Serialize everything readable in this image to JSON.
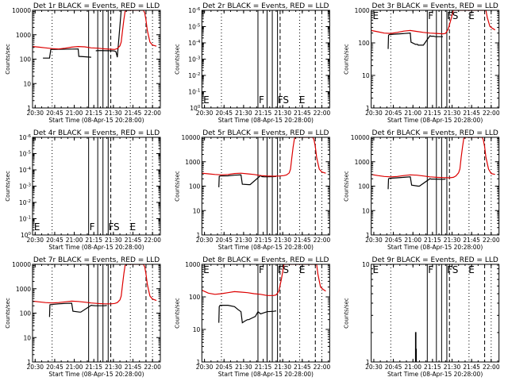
{
  "figure": {
    "title_template": "BLACK = Events, RED = LLD",
    "xlabel": "Start Time (08-Apr-15 20:28:00)",
    "ylabel": "Counts/sec",
    "colors": {
      "events": "#000000",
      "lld": "#dd0000"
    }
  },
  "chart_data": [
    {
      "type": "line",
      "title": "Det 1r BLACK = Events, RED = LLD",
      "xlabel": "Start Time (08-Apr-15 20:28:00)",
      "ylabel": "Counts/sec",
      "xticks": [
        "20:30",
        "20:45",
        "21:00",
        "21:15",
        "21:30",
        "21:45",
        "22:00"
      ],
      "xlim_min": [
        0,
        98
      ],
      "yscale": "log",
      "ylim": [
        1,
        10000
      ],
      "yticks": [
        "1",
        "10",
        "100",
        "1000",
        "10000"
      ],
      "markers": [],
      "series": [
        {
          "name": "Events",
          "color": "#000000",
          "x": [
            0,
            6,
            8,
            13,
            14,
            35,
            35.5,
            40,
            45,
            46,
            48,
            48.5,
            50,
            61,
            61.5,
            63,
            64,
            65,
            68,
            70,
            71,
            73,
            74,
            74.2
          ],
          "y": [
            null,
            null,
            110,
            110,
            250,
            260,
            130,
            125,
            120,
            null,
            null,
            220,
            225,
            220,
            220,
            215,
            200,
            120,
            10000,
            10000,
            10000,
            10000,
            10000,
            10000
          ]
        },
        {
          "name": "LLD",
          "color": "#dd0000",
          "x": [
            0,
            5,
            10,
            15,
            20,
            25,
            30,
            35,
            40,
            45,
            50,
            55,
            60,
            63,
            65,
            67,
            68,
            69,
            70,
            71,
            72,
            80,
            85,
            86,
            87,
            88,
            90,
            92,
            95
          ],
          "y": [
            330,
            310,
            290,
            270,
            260,
            280,
            310,
            330,
            320,
            290,
            280,
            265,
            255,
            250,
            270,
            350,
            500,
            1500,
            4000,
            9000,
            10000,
            10000,
            10000,
            8000,
            4000,
            1500,
            500,
            380,
            340
          ]
        }
      ]
    },
    {
      "type": "line",
      "title": "Det 2r BLACK = Events, RED = LLD",
      "xlabel": "Start Time (08-Apr-15 20:28:00)",
      "ylabel": "Counts/sec",
      "xticks": [
        "20:30",
        "20:45",
        "21:30",
        "21:15",
        "21:30",
        "21:45",
        "22:00"
      ],
      "yscale": "log",
      "ylim": [
        1,
        10
      ],
      "yticks": [
        "10^0",
        "10^-1",
        "10^-2",
        "10^-3",
        "10^-4",
        "10^-5",
        "10^-6"
      ],
      "markers": [
        "E",
        "F",
        "F",
        "S",
        "E"
      ],
      "series": []
    },
    {
      "type": "line",
      "title": "Det 3r BLACK = Events, RED = LLD",
      "xlabel": "Start Time (08-Apr-15 20:28:00)",
      "ylabel": "Counts/sec",
      "xticks": [
        "20:30",
        "20:45",
        "21:00",
        "21:15",
        "21:30",
        "21:45",
        "22:00"
      ],
      "yscale": "log",
      "ylim": [
        1,
        1000
      ],
      "yticks": [
        "1",
        "10",
        "100",
        "1000"
      ],
      "markers": [
        "E",
        "F",
        "F",
        "S",
        "E"
      ],
      "series": [
        {
          "name": "Events",
          "color": "#000000",
          "x": [
            13,
            13.3,
            13.5,
            14,
            30,
            30.5,
            34,
            35.5,
            36,
            40,
            45,
            46,
            48,
            49,
            55
          ],
          "y": [
            65,
            170,
            175,
            180,
            200,
            105,
            90,
            90,
            85,
            85,
            165,
            160,
            160,
            155,
            155
          ]
        },
        {
          "name": "LLD",
          "color": "#dd0000",
          "x": [
            0,
            5,
            10,
            15,
            20,
            25,
            30,
            35,
            40,
            45,
            50,
            55,
            57,
            59,
            61,
            63,
            88,
            89,
            91,
            93,
            95
          ],
          "y": [
            240,
            220,
            200,
            195,
            210,
            230,
            240,
            225,
            210,
            200,
            195,
            190,
            195,
            260,
            500,
            1000,
            1000,
            600,
            320,
            280,
            250
          ]
        }
      ]
    },
    {
      "type": "line",
      "title": "Det 4r BLACK = Events, RED = LLD",
      "xlabel": "Start Time (08-Apr-15 20:28:00)",
      "ylabel": "Counts/sec",
      "xticks": [
        "20:30",
        "20:45",
        "21:00",
        "21:15",
        "21:30",
        "21:45",
        "22:00"
      ],
      "yscale": "log",
      "ylim": [
        1,
        10
      ],
      "yticks": [
        "10^0",
        "10^-1",
        "10^-2",
        "10^-3",
        "10^-4",
        "10^-5",
        "10^-6"
      ],
      "markers": [
        "E",
        "F",
        "F",
        "S",
        "E"
      ],
      "series": []
    },
    {
      "type": "line",
      "title": "Det 5r BLACK = Events, RED = LLD",
      "xlabel": "Start Time (08-Apr-15 20:28:00)",
      "ylabel": "Counts/sec",
      "xticks": [
        "20:30",
        "20:45",
        "21:30",
        "21:15",
        "21:30",
        "21:45",
        "22:00"
      ],
      "yscale": "log",
      "ylim": [
        1,
        10000
      ],
      "yticks": [
        "1",
        "10",
        "100",
        "1000",
        "10000"
      ],
      "markers": [],
      "series": [
        {
          "name": "Events",
          "color": "#000000",
          "x": [
            13,
            13.3,
            14,
            20,
            25,
            30,
            31,
            36,
            37,
            45,
            46,
            48,
            55,
            57
          ],
          "y": [
            90,
            250,
            260,
            265,
            280,
            290,
            120,
            115,
            115,
            270,
            245,
            240,
            245,
            250
          ]
        },
        {
          "name": "LLD",
          "color": "#dd0000",
          "x": [
            0,
            5,
            10,
            15,
            20,
            25,
            30,
            35,
            40,
            45,
            50,
            55,
            60,
            63,
            65,
            67,
            68,
            69,
            70,
            71,
            72,
            80,
            85,
            86,
            87,
            88,
            90,
            92,
            95
          ],
          "y": [
            340,
            320,
            300,
            290,
            300,
            330,
            340,
            320,
            300,
            270,
            260,
            255,
            260,
            270,
            290,
            350,
            500,
            1500,
            4000,
            9000,
            10000,
            10000,
            10000,
            8000,
            4000,
            1500,
            500,
            380,
            340
          ]
        }
      ]
    },
    {
      "type": "line",
      "title": "Det 6r BLACK = Events, RED = LLD",
      "xlabel": "Start Time (08-Apr-15 20:28:00)",
      "ylabel": "Counts/sec",
      "xticks": [
        "20:30",
        "20:45",
        "21:00",
        "21:15",
        "21:30",
        "21:45",
        "22:00"
      ],
      "yscale": "log",
      "ylim": [
        1,
        10000
      ],
      "yticks": [
        "1",
        "10",
        "100",
        "1000",
        "10000"
      ],
      "markers": [],
      "series": [
        {
          "name": "Events",
          "color": "#000000",
          "x": [
            13,
            13.3,
            14,
            20,
            25,
            30,
            31,
            36,
            37,
            45,
            46,
            48,
            55,
            57
          ],
          "y": [
            75,
            200,
            210,
            220,
            230,
            240,
            110,
            100,
            100,
            200,
            195,
            195,
            190,
            195
          ]
        },
        {
          "name": "LLD",
          "color": "#dd0000",
          "x": [
            0,
            5,
            10,
            15,
            20,
            25,
            30,
            35,
            40,
            45,
            50,
            55,
            60,
            63,
            65,
            67,
            68,
            69,
            70,
            71,
            72,
            80,
            85,
            86,
            87,
            88,
            90,
            92,
            95
          ],
          "y": [
            300,
            270,
            250,
            240,
            250,
            270,
            290,
            280,
            260,
            240,
            230,
            225,
            220,
            230,
            260,
            350,
            500,
            1500,
            4000,
            9000,
            10000,
            10000,
            10000,
            8000,
            4000,
            1500,
            500,
            330,
            300
          ]
        }
      ]
    },
    {
      "type": "line",
      "title": "Det 7r BLACK = Events, RED = LLD",
      "xlabel": "Start Time (08-Apr-15 20:28:00)",
      "ylabel": "Counts/sec",
      "xticks": [
        "20:30",
        "20:45",
        "21:00",
        "21:15",
        "21:30",
        "21:45",
        "22:00"
      ],
      "yscale": "log",
      "ylim": [
        1,
        10000
      ],
      "yticks": [
        "1",
        "10",
        "100",
        "1000",
        "10000"
      ],
      "markers": [],
      "series": [
        {
          "name": "Events",
          "color": "#000000",
          "x": [
            13,
            13.3,
            14,
            20,
            25,
            30,
            31,
            36,
            37,
            45,
            46,
            48,
            55,
            57
          ],
          "y": [
            70,
            220,
            225,
            240,
            250,
            255,
            120,
            110,
            110,
            210,
            205,
            200,
            200,
            205
          ]
        },
        {
          "name": "LLD",
          "color": "#dd0000",
          "x": [
            0,
            5,
            10,
            15,
            20,
            25,
            30,
            35,
            40,
            45,
            50,
            55,
            60,
            63,
            65,
            67,
            68,
            69,
            70,
            71,
            72,
            80,
            85,
            86,
            87,
            88,
            90,
            92,
            95
          ],
          "y": [
            310,
            290,
            270,
            260,
            270,
            290,
            310,
            300,
            280,
            260,
            250,
            240,
            240,
            250,
            270,
            350,
            500,
            1500,
            4000,
            9000,
            10000,
            10000,
            10000,
            8000,
            4000,
            1500,
            500,
            380,
            330
          ]
        }
      ]
    },
    {
      "type": "line",
      "title": "Det 8r BLACK = Events, RED = LLD",
      "xlabel": "Start Time (08-Apr-15 20:28:00)",
      "ylabel": "Counts/sec",
      "xticks": [
        "20:30",
        "20:45",
        "21:30",
        "21:15",
        "21:30",
        "21:45",
        "22:00"
      ],
      "yscale": "log",
      "ylim": [
        1,
        1000
      ],
      "yticks": [
        "1",
        "10",
        "100",
        "1000"
      ],
      "markers": [
        "E",
        "F",
        "F",
        "S",
        "E"
      ],
      "series": [
        {
          "name": "Events",
          "color": "#000000",
          "x": [
            13,
            13.3,
            14,
            20,
            25,
            28,
            30,
            31,
            33,
            35,
            36,
            38,
            41,
            43,
            45,
            50,
            55,
            57
          ],
          "y": [
            16,
            50,
            55,
            55,
            50,
            40,
            35,
            16,
            18,
            20,
            20,
            22,
            25,
            35,
            30,
            35,
            36,
            37
          ]
        },
        {
          "name": "LLD",
          "color": "#dd0000",
          "x": [
            0,
            5,
            10,
            15,
            20,
            25,
            30,
            35,
            40,
            45,
            50,
            55,
            57,
            59,
            61,
            63,
            88,
            89,
            91,
            93,
            95
          ],
          "y": [
            160,
            130,
            120,
            125,
            135,
            145,
            140,
            135,
            125,
            120,
            110,
            110,
            115,
            150,
            350,
            1000,
            1000,
            500,
            200,
            170,
            150
          ]
        }
      ]
    },
    {
      "type": "line",
      "title": "Det 9r BLACK = Events, RED = LLD",
      "xlabel": "Start Time (08-Apr-15 20:28:00)",
      "ylabel": "Counts/sec",
      "xticks": [
        "20:30",
        "20:45",
        "21:00",
        "21:15",
        "21:30",
        "21:45",
        "22:00"
      ],
      "yscale": "log",
      "ylim": [
        1,
        10
      ],
      "yticks": [
        "1",
        "10"
      ],
      "markers": [
        "E",
        "F",
        "F",
        "S",
        "E"
      ],
      "series": [
        {
          "name": "Events",
          "color": "#000000",
          "x": [
            34,
            34.01,
            34.3,
            34.31,
            34.6,
            34.61
          ],
          "y": [
            1,
            2,
            2,
            1.35,
            1.35,
            1
          ]
        }
      ]
    }
  ],
  "vertical_lines": {
    "x_minutes": [
      43,
      50,
      54,
      58,
      60,
      75,
      87,
      92
    ],
    "styles": [
      "solid",
      "solid",
      "solid",
      "solid",
      "dashed",
      "dotted",
      "dashed",
      "dotted"
    ],
    "extra_dotted": [
      15
    ]
  }
}
